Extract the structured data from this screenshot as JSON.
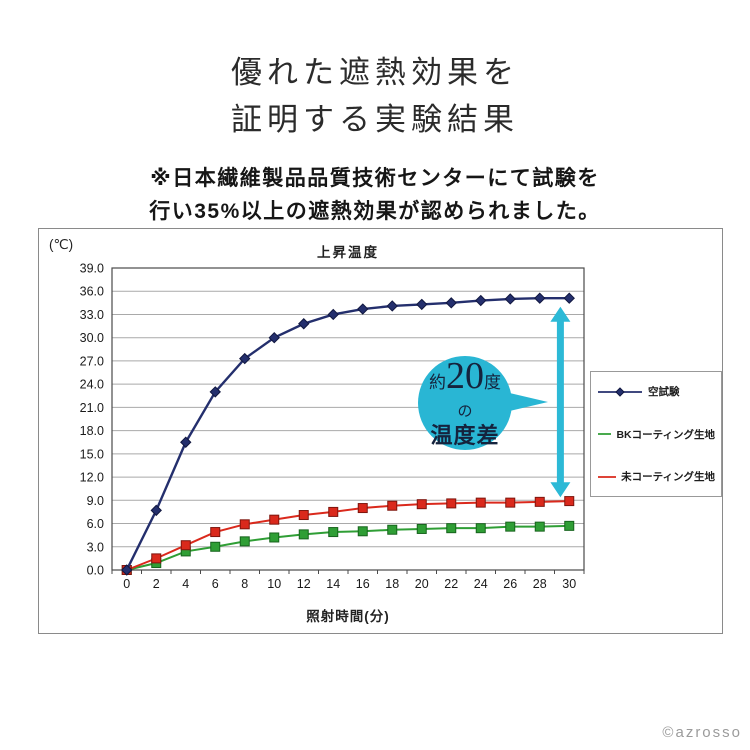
{
  "header": {
    "title_line1": "優れた遮熱効果を",
    "title_line2": "証明する実験結果",
    "note_line1": "※日本繊維製品品質技術センターにて試験を",
    "note_line2": "行い35%以上の遮熱効果が認められました。"
  },
  "chart_data": {
    "type": "line",
    "title": "上昇温度",
    "unit_label": "(℃)",
    "xlabel": "照射時間(分)",
    "ylim": [
      0,
      39
    ],
    "ytick_step": 3,
    "grid": true,
    "legend_position": "right-outside",
    "categories": [
      0,
      2,
      4,
      6,
      8,
      10,
      12,
      14,
      16,
      18,
      20,
      22,
      24,
      26,
      28,
      30
    ],
    "series": [
      {
        "id": "blank-test",
        "name": "空試験",
        "color": "#242f6d",
        "marker": "diamond",
        "marker_edge": "#11173f",
        "values": [
          0.0,
          7.7,
          16.5,
          23.0,
          27.3,
          30.0,
          31.8,
          33.0,
          33.7,
          34.1,
          34.3,
          34.5,
          34.8,
          35.0,
          35.1,
          35.1
        ]
      },
      {
        "id": "bk-coated-fabric",
        "name": "BKコーティング生地",
        "color": "#2f9e35",
        "marker": "square",
        "marker_edge": "#17641d",
        "values": [
          0.0,
          0.9,
          2.4,
          3.0,
          3.7,
          4.2,
          4.6,
          4.9,
          5.0,
          5.2,
          5.3,
          5.4,
          5.4,
          5.6,
          5.6,
          5.7
        ]
      },
      {
        "id": "uncoated-fabric",
        "name": "未コーティング生地",
        "color": "#da291c",
        "marker": "square",
        "marker_edge": "#7e150d",
        "values": [
          0.0,
          1.5,
          3.2,
          4.9,
          5.9,
          6.5,
          7.1,
          7.5,
          8.0,
          8.3,
          8.5,
          8.6,
          8.7,
          8.7,
          8.8,
          8.9
        ]
      }
    ],
    "annotation": {
      "bubble_line1_prefix": "約",
      "bubble_line1_number": "20",
      "bubble_line1_suffix": "度",
      "bubble_line2": "の",
      "bubble_line3": "温度差",
      "bubble_color": "#29b6d4",
      "arrow_color": "#2cb9d6",
      "arrow_x": 29.4,
      "arrow_y_top": 34.0,
      "arrow_y_bottom": 9.4
    }
  },
  "footer": {
    "copyright": "©azrosso"
  }
}
